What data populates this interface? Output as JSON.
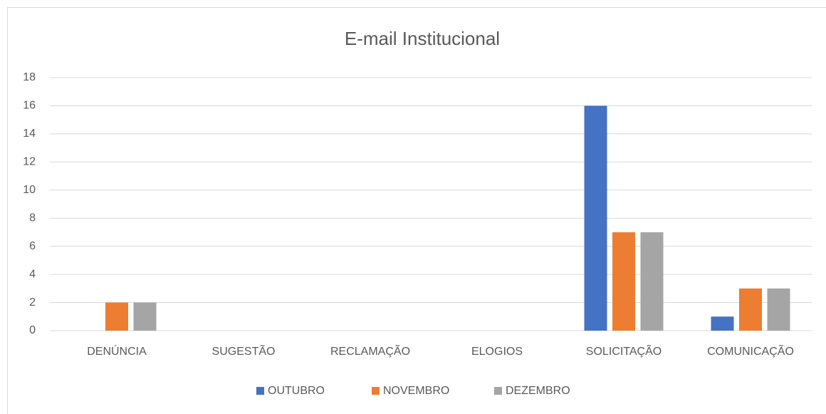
{
  "chart_data": {
    "type": "bar",
    "title": "E-mail Institucional",
    "categories": [
      "DENÚNCIA",
      "SUGESTÃO",
      "RECLAMAÇÃO",
      "ELOGIOS",
      "SOLICITAÇÃO",
      "COMUNICAÇÃO"
    ],
    "series": [
      {
        "name": "OUTUBRO",
        "color": "#4472c4",
        "values": [
          0,
          0,
          0,
          0,
          16,
          1
        ]
      },
      {
        "name": "NOVEMBRO",
        "color": "#ed7d31",
        "values": [
          2,
          0,
          0,
          0,
          7,
          3
        ]
      },
      {
        "name": "DEZEMBRO",
        "color": "#a5a5a5",
        "values": [
          2,
          0,
          0,
          0,
          7,
          3
        ]
      }
    ],
    "ylim": [
      0,
      18
    ],
    "yticks": [
      0,
      2,
      4,
      6,
      8,
      10,
      12,
      14,
      16,
      18
    ],
    "grid": true,
    "legend": "bottom"
  }
}
